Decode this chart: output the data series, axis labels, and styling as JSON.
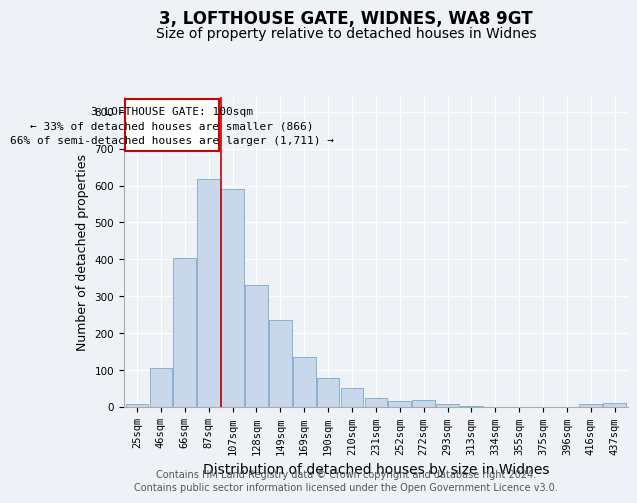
{
  "title": "3, LOFTHOUSE GATE, WIDNES, WA8 9GT",
  "subtitle": "Size of property relative to detached houses in Widnes",
  "xlabel": "Distribution of detached houses by size in Widnes",
  "ylabel": "Number of detached properties",
  "categories": [
    "25sqm",
    "46sqm",
    "66sqm",
    "87sqm",
    "107sqm",
    "128sqm",
    "149sqm",
    "169sqm",
    "190sqm",
    "210sqm",
    "231sqm",
    "252sqm",
    "272sqm",
    "293sqm",
    "313sqm",
    "334sqm",
    "355sqm",
    "375sqm",
    "396sqm",
    "416sqm",
    "437sqm"
  ],
  "values": [
    7,
    107,
    403,
    618,
    592,
    330,
    237,
    135,
    78,
    51,
    24,
    15,
    18,
    8,
    4,
    1,
    0,
    0,
    0,
    8,
    10
  ],
  "bar_color": "#c8d8ea",
  "bar_edge_color": "#7aaac8",
  "vline_index": 4,
  "vline_color": "#cc0000",
  "ann_line1": "3 LOFTHOUSE GATE: 100sqm",
  "ann_line2": "← 33% of detached houses are smaller (866)",
  "ann_line3": "66% of semi-detached houses are larger (1,711) →",
  "annotation_box_color": "#ffffff",
  "annotation_box_edge_color": "#cc0000",
  "ylim": [
    0,
    840
  ],
  "yticks": [
    0,
    100,
    200,
    300,
    400,
    500,
    600,
    700,
    800
  ],
  "footer1": "Contains HM Land Registry data © Crown copyright and database right 2024.",
  "footer2": "Contains public sector information licensed under the Open Government Licence v3.0.",
  "title_fontsize": 12,
  "subtitle_fontsize": 10,
  "xlabel_fontsize": 10,
  "ylabel_fontsize": 9,
  "tick_fontsize": 7.5,
  "footer_fontsize": 7,
  "annotation_fontsize": 8,
  "bg_color": "#eef2f7"
}
